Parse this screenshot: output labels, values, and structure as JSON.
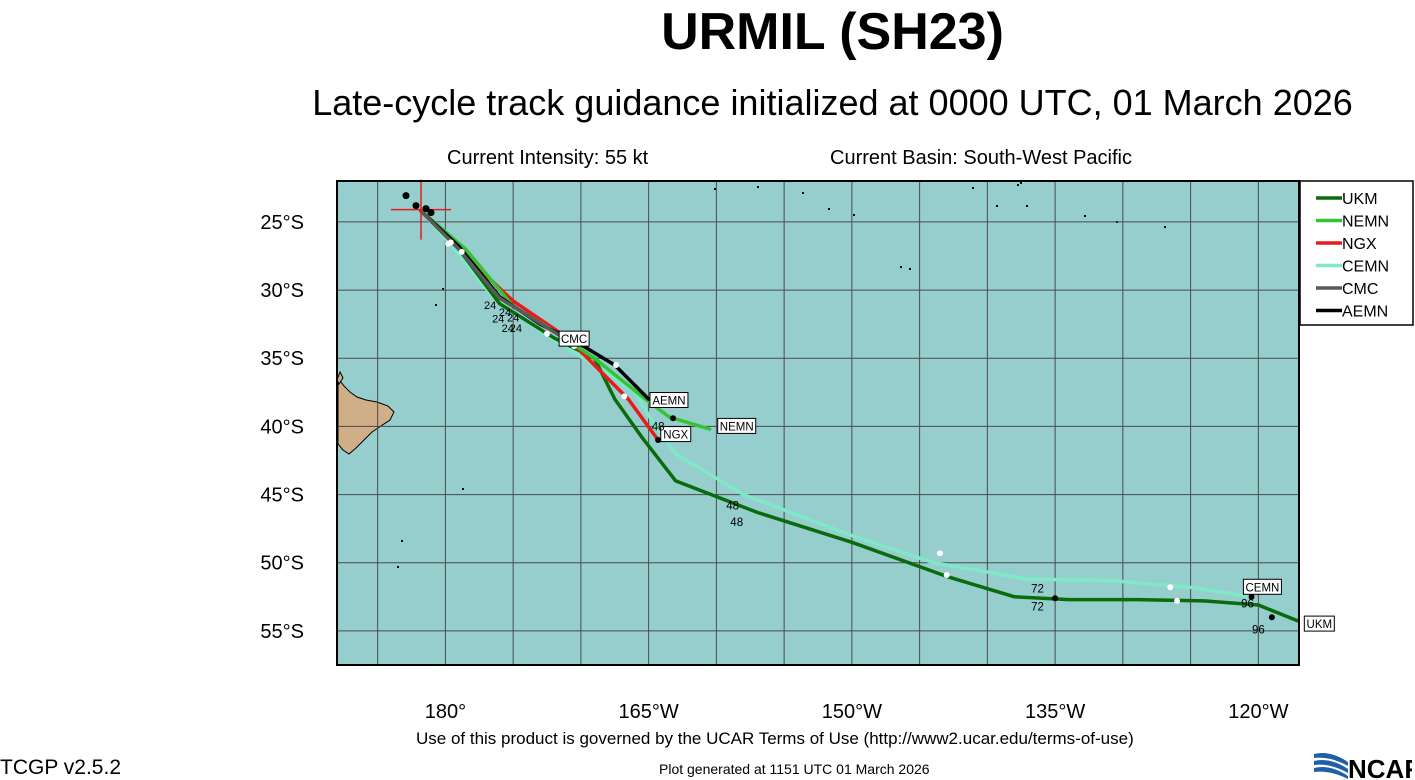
{
  "title": "URMIL (SH23)",
  "subtitle": "Late-cycle track guidance initialized at 0000 UTC, 01 March 2026",
  "current_intensity": "Current Intensity: 55 kt",
  "current_basin": "Current Basin: South-West Pacific",
  "terms": "Use of this product is governed by the UCAR Terms of Use (http://www2.ucar.edu/terms-of-use)",
  "version": "TCGP v2.5.2",
  "generated": "Plot generated at 1151 UTC    01 March 2026",
  "logo_text": "NCAR",
  "map": {
    "lon_range": [
      172,
      243
    ],
    "lat_range": [
      -57.5,
      -22
    ],
    "ocean_color": "#96cece",
    "land_color": "#d0ae88",
    "grid": true,
    "lon_ticks": [
      {
        "lon": 180,
        "label": "180°"
      },
      {
        "lon": 195,
        "label": "165°W"
      },
      {
        "lon": 210,
        "label": "150°W"
      },
      {
        "lon": 225,
        "label": "135°W"
      },
      {
        "lon": 240,
        "label": "120°W"
      }
    ],
    "lat_ticks": [
      {
        "lat": -25,
        "label": "25°S"
      },
      {
        "lat": -30,
        "label": "30°S"
      },
      {
        "lat": -35,
        "label": "35°S"
      },
      {
        "lat": -40,
        "label": "40°S"
      },
      {
        "lat": -45,
        "label": "45°S"
      },
      {
        "lat": -50,
        "label": "50°S"
      },
      {
        "lat": -55,
        "label": "55°S"
      }
    ],
    "storm_position": {
      "lon": 178.2,
      "lat": -24.1
    }
  },
  "legend": [
    {
      "name": "UKM",
      "color": "#0b6b0b"
    },
    {
      "name": "NEMN",
      "color": "#33c433"
    },
    {
      "name": "NGX",
      "color": "#e81b1b"
    },
    {
      "name": "CEMN",
      "color": "#7fe8c8"
    },
    {
      "name": "CMC",
      "color": "#5a5a5a"
    },
    {
      "name": "AEMN",
      "color": "#000000"
    }
  ],
  "tracks": [
    {
      "name": "CEMN",
      "color": "#7fe8c8",
      "points": [
        [
          178.2,
          -24.2
        ],
        [
          180.5,
          -26.8
        ],
        [
          183.5,
          -30.5
        ],
        [
          187,
          -33
        ],
        [
          191,
          -35.5
        ],
        [
          194,
          -37.5
        ],
        [
          195.5,
          -40
        ],
        [
          197,
          -42
        ],
        [
          202,
          -45
        ],
        [
          210,
          -48
        ],
        [
          216,
          -50
        ],
        [
          223,
          -51.2
        ],
        [
          229,
          -51.3
        ],
        [
          235,
          -51.8
        ],
        [
          239.5,
          -52.5
        ]
      ],
      "dots": [
        [
          180.2,
          -26.6,
          "w"
        ],
        [
          181.2,
          -27.2,
          "w"
        ],
        [
          216.5,
          -49.3,
          "w"
        ],
        [
          233.5,
          -51.8,
          "w"
        ],
        [
          239.5,
          -52.5,
          "k"
        ]
      ],
      "labels": [
        {
          "text": "CEMN",
          "lon": 240.3,
          "lat": -51.8,
          "boxed": true
        },
        {
          "text": "96",
          "lon": 239.2,
          "lat": -53.0,
          "boxed": false
        }
      ]
    },
    {
      "name": "UKM",
      "color": "#0b6b0b",
      "points": [
        [
          178.2,
          -24.2
        ],
        [
          181,
          -27
        ],
        [
          184,
          -31
        ],
        [
          188,
          -33.5
        ],
        [
          191,
          -35
        ],
        [
          192.5,
          -38
        ],
        [
          194.5,
          -40.8
        ],
        [
          197,
          -44
        ],
        [
          203,
          -46.3
        ],
        [
          210,
          -48.5
        ],
        [
          217,
          -51
        ],
        [
          222,
          -52.5
        ],
        [
          226,
          -52.7
        ],
        [
          231,
          -52.7
        ],
        [
          236,
          -52.8
        ],
        [
          240,
          -53.1
        ],
        [
          243,
          -54.3
        ],
        [
          245,
          -55
        ]
      ],
      "dots": [
        [
          217,
          -50.9,
          "w"
        ],
        [
          225,
          -52.6,
          "k"
        ],
        [
          234,
          -52.8,
          "w"
        ],
        [
          241,
          -54.0,
          "k"
        ]
      ],
      "labels": [
        {
          "text": "UKM",
          "lon": 244.5,
          "lat": -54.5,
          "boxed": true
        },
        {
          "text": "96",
          "lon": 240,
          "lat": -54.9,
          "boxed": false
        },
        {
          "text": "72",
          "lon": 223.7,
          "lat": -51.9,
          "boxed": false
        },
        {
          "text": "72",
          "lon": 223.7,
          "lat": -53.2,
          "boxed": false
        },
        {
          "text": "48",
          "lon": 201.2,
          "lat": -45.8,
          "boxed": false
        },
        {
          "text": "48",
          "lon": 201.5,
          "lat": -47.0,
          "boxed": false
        }
      ]
    },
    {
      "name": "NGX",
      "color": "#e81b1b",
      "points": [
        [
          178.2,
          -24.2
        ],
        [
          181.5,
          -27.5
        ],
        [
          185,
          -30.8
        ],
        [
          189,
          -33.5
        ],
        [
          191.5,
          -36
        ],
        [
          193.5,
          -38
        ],
        [
          195.7,
          -41
        ]
      ],
      "dots": [
        [
          193.2,
          -37.8,
          "w"
        ],
        [
          195.7,
          -41,
          "k"
        ]
      ],
      "labels": [
        {
          "text": "NGX",
          "lon": 197,
          "lat": -40.6,
          "boxed": true
        }
      ]
    },
    {
      "name": "NEMN",
      "color": "#33c433",
      "points": [
        [
          178.2,
          -24.2
        ],
        [
          181.5,
          -27
        ],
        [
          185,
          -31.2
        ],
        [
          188,
          -33
        ],
        [
          191,
          -35
        ],
        [
          194.5,
          -37.8
        ],
        [
          196.5,
          -39.3
        ],
        [
          199.5,
          -40.2
        ]
      ],
      "dots": [
        [
          180.4,
          -26.5,
          "w"
        ],
        [
          187.5,
          -33.2,
          "w"
        ],
        [
          196.8,
          -39.4,
          "k"
        ]
      ],
      "labels": [
        {
          "text": "NEMN",
          "lon": 201.5,
          "lat": -40.0,
          "boxed": true
        },
        {
          "text": "48",
          "lon": 195.7,
          "lat": -40.0,
          "boxed": false
        }
      ]
    },
    {
      "name": "AEMN",
      "color": "#000000",
      "points": [
        [
          178.2,
          -24.2
        ],
        [
          181,
          -26.8
        ],
        [
          184,
          -30.5
        ],
        [
          187,
          -32.5
        ],
        [
          190,
          -34
        ],
        [
          192.5,
          -35.5
        ],
        [
          195,
          -38
        ]
      ],
      "dots": [
        [
          192.6,
          -35.5,
          "w"
        ]
      ],
      "labels": [
        {
          "text": "AEMN",
          "lon": 196.5,
          "lat": -38.1,
          "boxed": true
        }
      ]
    },
    {
      "name": "CMC",
      "color": "#5a5a5a",
      "points": [
        [
          178.2,
          -24.2
        ],
        [
          181,
          -27
        ],
        [
          184,
          -30.6
        ],
        [
          186,
          -31.8
        ],
        [
          189.5,
          -34.0
        ]
      ],
      "dots": [
        [
          189.5,
          -34.1,
          "w"
        ]
      ],
      "labels": [
        {
          "text": "CMC",
          "lon": 189.5,
          "lat": -33.6,
          "boxed": true
        }
      ]
    }
  ],
  "early_labels": [
    {
      "text": "24",
      "lon": 183.3,
      "lat": -31.1
    },
    {
      "text": "24",
      "lon": 184.4,
      "lat": -31.6
    },
    {
      "text": "24",
      "lon": 183.9,
      "lat": -32.1
    },
    {
      "text": "24",
      "lon": 185.0,
      "lat": -32.0
    },
    {
      "text": "24",
      "lon": 184.6,
      "lat": -32.8
    },
    {
      "text": "24",
      "lon": 185.2,
      "lat": -32.8
    }
  ]
}
